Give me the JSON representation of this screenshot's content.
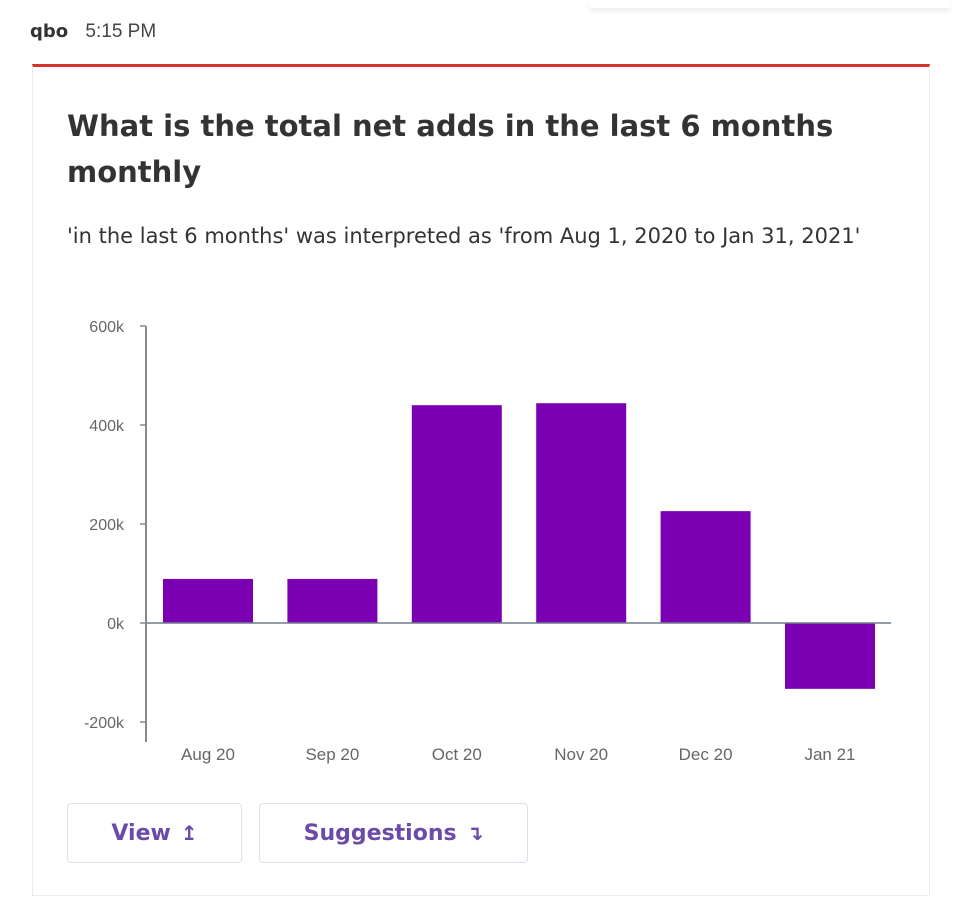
{
  "header": {
    "sender": "qbo",
    "time": "5:15 PM"
  },
  "card": {
    "title": "What is the total net adds in the last 6 months monthly",
    "interpretation": "'in the last 6 months' was interpreted as 'from Aug 1, 2020 to Jan 31, 2021'",
    "buttons": [
      {
        "label": "View",
        "icon": "arrow-up-bar-icon",
        "glyph": "↥"
      },
      {
        "label": "Suggestions",
        "icon": "arrow-down-turn-icon",
        "glyph": "↴"
      }
    ]
  },
  "colors": {
    "bar": "#7b00b4",
    "accent": "#d6322e",
    "button_text": "#6c4aa8"
  },
  "chart_data": {
    "type": "bar",
    "title": "",
    "xlabel": "",
    "ylabel": "",
    "categories": [
      "Aug 20",
      "Sep 20",
      "Oct 20",
      "Nov 20",
      "Dec 20",
      "Jan 21"
    ],
    "values": [
      89000,
      89000,
      440000,
      444000,
      226000,
      -133000
    ],
    "ylim": [
      -200000,
      600000
    ],
    "yticks": [
      {
        "v": 600000,
        "label": "600k"
      },
      {
        "v": 400000,
        "label": "400k"
      },
      {
        "v": 200000,
        "label": "200k"
      },
      {
        "v": 0,
        "label": "0k"
      },
      {
        "v": -200000,
        "label": "-200k"
      }
    ],
    "grid": false
  }
}
